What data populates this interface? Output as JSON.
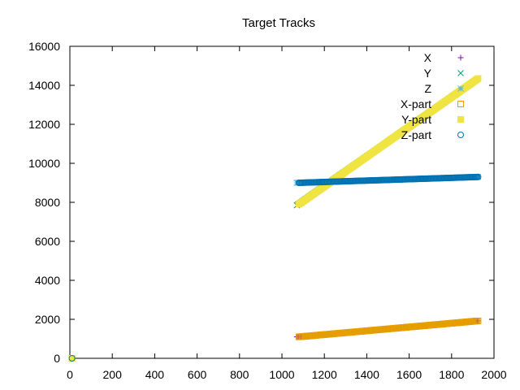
{
  "chart_data": {
    "type": "scatter",
    "title": "Target Tracks",
    "xlabel": "",
    "ylabel": "",
    "xlim": [
      0,
      2000
    ],
    "ylim": [
      0,
      16000
    ],
    "xticks": [
      "0",
      "200",
      "400",
      "600",
      "800",
      "1000",
      "1200",
      "1400",
      "1600",
      "1800",
      "2000"
    ],
    "yticks": [
      "0",
      "2000",
      "4000",
      "6000",
      "8000",
      "10000",
      "12000",
      "14000",
      "16000"
    ],
    "grid": false,
    "legend_position": "top-right",
    "series": [
      {
        "name": "X",
        "marker": "plus",
        "color": "#9400d3",
        "range": [
          [
            1070,
            1100
          ],
          [
            1925,
            1920
          ]
        ],
        "origin": [
          10,
          0
        ]
      },
      {
        "name": "Y",
        "marker": "cross",
        "color": "#009e73",
        "range": [
          [
            1070,
            7850
          ],
          [
            1925,
            14350
          ]
        ],
        "origin": [
          10,
          0
        ]
      },
      {
        "name": "Z",
        "marker": "star",
        "color": "#56b4e9",
        "range": [
          [
            1070,
            9000
          ],
          [
            1925,
            9300
          ]
        ],
        "origin": [
          10,
          0
        ]
      },
      {
        "name": "X-part",
        "marker": "open-square",
        "color": "#e69f00",
        "range": [
          [
            1080,
            1100
          ],
          [
            1925,
            1920
          ]
        ],
        "origin": [
          10,
          0
        ]
      },
      {
        "name": "Y-part",
        "marker": "filled-square",
        "color": "#f0e442",
        "range": [
          [
            1080,
            7900
          ],
          [
            1925,
            14350
          ]
        ],
        "origin": [
          10,
          0
        ]
      },
      {
        "name": "Z-part",
        "marker": "open-circle",
        "color": "#0072b2",
        "range": [
          [
            1080,
            9000
          ],
          [
            1925,
            9300
          ]
        ],
        "origin": [
          10,
          0
        ]
      }
    ]
  }
}
